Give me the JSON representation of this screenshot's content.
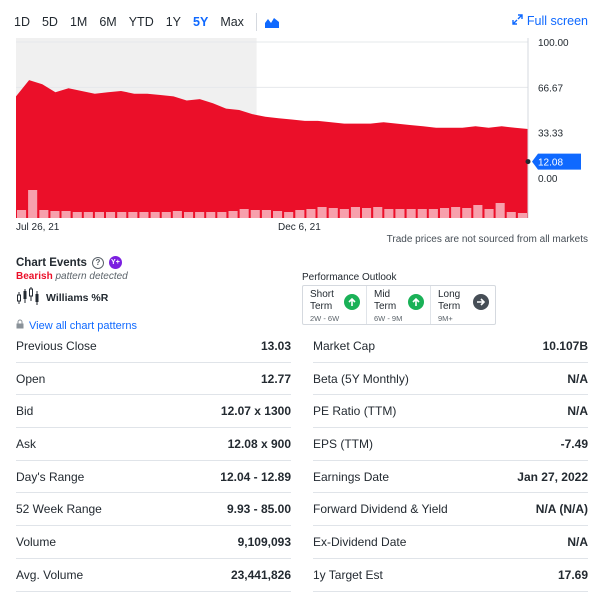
{
  "toolbar": {
    "ranges": [
      "1D",
      "5D",
      "1M",
      "6M",
      "YTD",
      "1Y",
      "5Y",
      "Max"
    ],
    "active_range": "5Y",
    "fullscreen_label": "Full screen"
  },
  "chart_data": {
    "type": "area",
    "y_ticks": [
      "100.00",
      "66.67",
      "33.33",
      "0.00"
    ],
    "ylim": [
      0,
      100
    ],
    "x_labels": [
      "Jul 26, 21",
      "Dec 6, 21"
    ],
    "current_price_label": "12.08",
    "current_price": 12.08,
    "series": [
      {
        "values": [
          60,
          72,
          69,
          63,
          66,
          64,
          62,
          63,
          64,
          62,
          62,
          61,
          60,
          57,
          58,
          55,
          51,
          50,
          47,
          45,
          44,
          43,
          42,
          42,
          41,
          40,
          40,
          40,
          41,
          40,
          39,
          38,
          37,
          37,
          37,
          38,
          37,
          38,
          37,
          36
        ]
      }
    ],
    "volume": [
      8,
      28,
      8,
      7,
      7,
      6,
      6,
      6,
      6,
      6,
      6,
      6,
      6,
      6,
      7,
      6,
      6,
      6,
      6,
      7,
      9,
      8,
      8,
      7,
      6,
      8,
      9,
      11,
      10,
      9,
      11,
      10,
      11,
      9,
      9,
      9,
      9,
      9,
      10,
      11,
      10,
      13,
      9,
      15,
      6,
      5
    ],
    "shaded_period_end_fraction": 0.47,
    "colors": {
      "area": "#eb0f29",
      "shade": "#f0f0f0",
      "volume_normal": "#f7a0ac",
      "volume_bar_outline": "#eb0f29",
      "price_badge": "#0f69ff"
    }
  },
  "chart_note": "Trade prices are not sourced from all markets",
  "events": {
    "title": "Chart Events",
    "plus_badge": "Y+",
    "bearish": "Bearish",
    "pattern_detected": " pattern detected",
    "indicator": "Williams %R",
    "view_patterns": "View all chart patterns"
  },
  "outlook": {
    "title": "Performance Outlook",
    "terms": [
      {
        "line1": "Short",
        "line2": "Term",
        "range": "2W - 6W",
        "direction": "up",
        "color": "#1ab157"
      },
      {
        "line1": "Mid",
        "line2": "Term",
        "range": "6W - 9M",
        "direction": "up",
        "color": "#1ab157"
      },
      {
        "line1": "Long",
        "line2": "Term",
        "range": "9M+",
        "direction": "right",
        "color": "#464e56"
      }
    ]
  },
  "stats_left": [
    {
      "label": "Previous Close",
      "value": "13.03"
    },
    {
      "label": "Open",
      "value": "12.77"
    },
    {
      "label": "Bid",
      "value": "12.07 x 1300"
    },
    {
      "label": "Ask",
      "value": "12.08 x 900"
    },
    {
      "label": "Day's Range",
      "value": "12.04 - 12.89"
    },
    {
      "label": "52 Week Range",
      "value": "9.93 - 85.00"
    },
    {
      "label": "Volume",
      "value": "9,109,093"
    },
    {
      "label": "Avg. Volume",
      "value": "23,441,826"
    }
  ],
  "stats_right": [
    {
      "label": "Market Cap",
      "value": "10.107B"
    },
    {
      "label": "Beta (5Y Monthly)",
      "value": "N/A"
    },
    {
      "label": "PE Ratio (TTM)",
      "value": "N/A"
    },
    {
      "label": "EPS (TTM)",
      "value": "-7.49"
    },
    {
      "label": "Earnings Date",
      "value": "Jan 27, 2022"
    },
    {
      "label": "Forward Dividend & Yield",
      "value": "N/A (N/A)"
    },
    {
      "label": "Ex-Dividend Date",
      "value": "N/A"
    },
    {
      "label": "1y Target Est",
      "value": "17.69"
    }
  ]
}
